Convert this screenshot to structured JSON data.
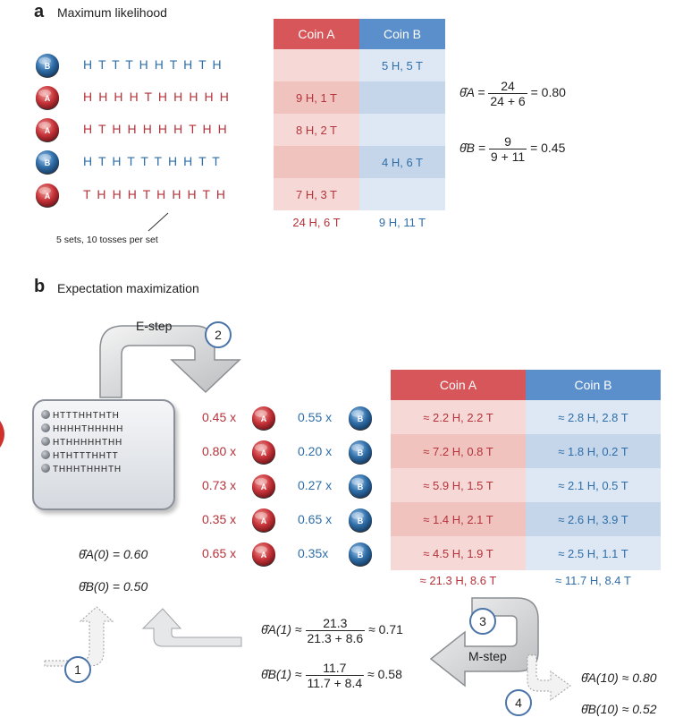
{
  "panel_a": {
    "letter": "a",
    "title": "Maximum likelihood",
    "coin_a_label": "A",
    "coin_b_label": "B",
    "header_coin_a": "Coin A",
    "header_coin_b": "Coin B",
    "rows": [
      {
        "coin": "B",
        "sequence": "H T T T H H T H T H",
        "coin_a": "",
        "coin_b": "5 H, 5 T"
      },
      {
        "coin": "A",
        "sequence": "H H H H T H H H H H",
        "coin_a": "9 H, 1 T",
        "coin_b": ""
      },
      {
        "coin": "A",
        "sequence": "H T H H H H H T H H",
        "coin_a": "8 H, 2 T",
        "coin_b": ""
      },
      {
        "coin": "B",
        "sequence": "H T H T T T H H T T",
        "coin_a": "",
        "coin_b": "4 H, 6 T"
      },
      {
        "coin": "A",
        "sequence": "T H H H T H H H T H",
        "coin_a": "7 H, 3 T",
        "coin_b": ""
      }
    ],
    "total_a": "24 H, 6 T",
    "total_b": "9 H, 11 T",
    "annotation": "5 sets, 10 tosses per set",
    "estimates": {
      "theta_a_lhs": "θ̂A =",
      "theta_a_num": "24",
      "theta_a_den": "24 + 6",
      "theta_a_val": "= 0.80",
      "theta_b_lhs": "θ̂B =",
      "theta_b_num": "9",
      "theta_b_den": "9 + 11",
      "theta_b_val": "= 0.45"
    }
  },
  "panel_b": {
    "letter": "b",
    "title": "Expectation maximization",
    "estep_label": "E-step",
    "mstep_label": "M-step",
    "step_numbers": [
      "1",
      "2",
      "3",
      "4"
    ],
    "box_rows": [
      "HTTTHHTHTH",
      "HHHHTHHHHH",
      "HTHHHHHTHH",
      "HTHTTTHHTT",
      "THHHTHHHTH"
    ],
    "weights": [
      {
        "a": "0.45 x",
        "b": "0.55 x"
      },
      {
        "a": "0.80 x",
        "b": "0.20 x"
      },
      {
        "a": "0.73 x",
        "b": "0.27 x"
      },
      {
        "a": "0.35 x",
        "b": "0.65 x"
      },
      {
        "a": "0.65 x",
        "b": "0.35x"
      }
    ],
    "header_coin_a": "Coin A",
    "header_coin_b": "Coin B",
    "table_rows": [
      {
        "a": "≈ 2.2 H, 2.2 T",
        "b": "≈ 2.8 H, 2.8 T"
      },
      {
        "a": "≈ 7.2 H, 0.8 T",
        "b": "≈ 1.8 H, 0.2 T"
      },
      {
        "a": "≈ 5.9 H, 1.5 T",
        "b": "≈ 2.1 H, 0.5 T"
      },
      {
        "a": "≈ 1.4 H, 2.1 T",
        "b": "≈ 2.6 H, 3.9 T"
      },
      {
        "a": "≈ 4.5 H, 1.9 T",
        "b": "≈ 2.5 H, 1.1 T"
      }
    ],
    "total_a": "≈ 21.3 H, 8.6 T",
    "total_b": "≈ 11.7 H, 8.4 T",
    "initial": {
      "theta_a": "θ̂A(0) = 0.60",
      "theta_b": "θ̂B(0) = 0.50"
    },
    "update": {
      "theta_a_lhs": "θ̂A(1) ≈",
      "theta_a_num": "21.3",
      "theta_a_den": "21.3 + 8.6",
      "theta_a_val": "≈ 0.71",
      "theta_b_lhs": "θ̂B(1) ≈",
      "theta_b_num": "11.7",
      "theta_b_den": "11.7 + 8.4",
      "theta_b_val": "≈ 0.58"
    },
    "final": {
      "theta_a": "θ̂A(10) ≈ 0.80",
      "theta_b": "θ̂B(10) ≈ 0.52"
    }
  },
  "colors": {
    "coin_a": "#c8343a",
    "coin_b": "#2f6ea8",
    "header_a": "#d6565a",
    "header_b": "#5b8fcb"
  }
}
